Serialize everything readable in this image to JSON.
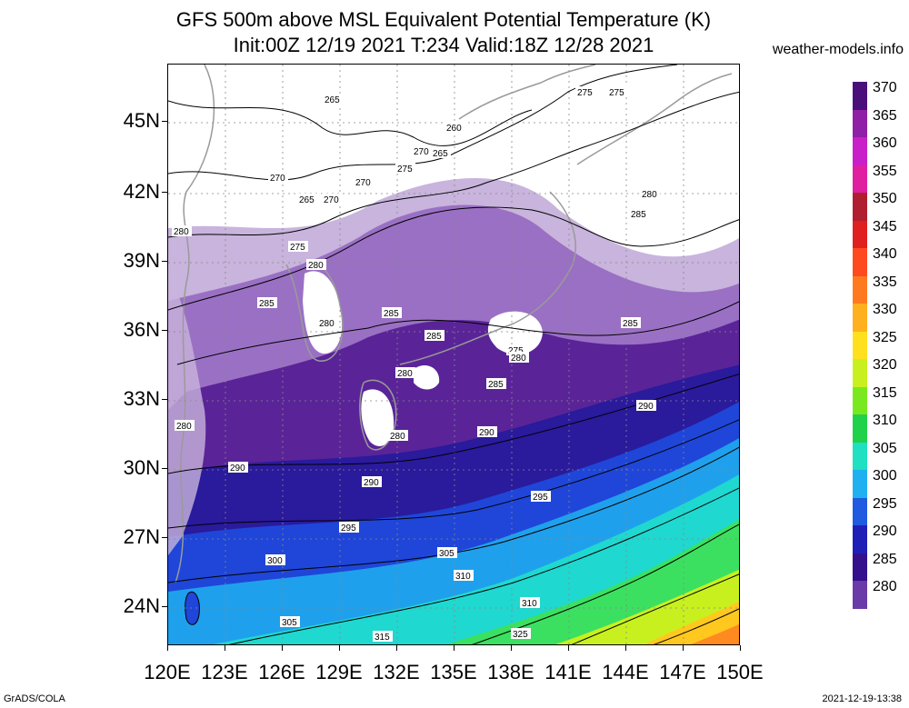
{
  "title": {
    "line1": "GFS 500m above MSL Equivalent Potential Temperature (K)",
    "line2": "Init:00Z 12/19 2021 T:234 Valid:18Z 12/28 2021"
  },
  "credit": "weather-models.info",
  "lat_labels": [
    "45N",
    "42N",
    "39N",
    "36N",
    "33N",
    "30N",
    "27N",
    "24N"
  ],
  "lon_labels": [
    "120E",
    "123E",
    "126E",
    "129E",
    "132E",
    "135E",
    "138E",
    "141E",
    "144E",
    "147E",
    "150E"
  ],
  "colorbar": {
    "labels": [
      "370",
      "365",
      "360",
      "355",
      "350",
      "345",
      "340",
      "335",
      "330",
      "325",
      "320",
      "315",
      "310",
      "305",
      "300",
      "295",
      "290",
      "285",
      "280"
    ],
    "colors": [
      "#4b0f7a",
      "#8e1fa6",
      "#c81fc8",
      "#e01fa0",
      "#b01f30",
      "#e01f1f",
      "#ff4a1f",
      "#ff7a1f",
      "#ffb01f",
      "#ffe01f",
      "#c8f01f",
      "#7ae81f",
      "#1fd24a",
      "#1fe0c0",
      "#1fb0f0",
      "#1f5ae0",
      "#1f1fb8",
      "#34108c",
      "#6a3aa8"
    ]
  },
  "contour_labels": [
    "265",
    "270",
    "270",
    "265",
    "270",
    "260",
    "265",
    "270",
    "275",
    "275",
    "275",
    "280",
    "285",
    "280",
    "275",
    "280",
    "280",
    "285",
    "285",
    "280",
    "285",
    "285",
    "280",
    "275",
    "280",
    "285",
    "290",
    "280",
    "290",
    "290",
    "290",
    "295",
    "295",
    "300",
    "305",
    "310",
    "305",
    "310",
    "315",
    "325"
  ],
  "footer": {
    "left": "GrADS/COLA",
    "right": "2021-12-19-13:38"
  }
}
